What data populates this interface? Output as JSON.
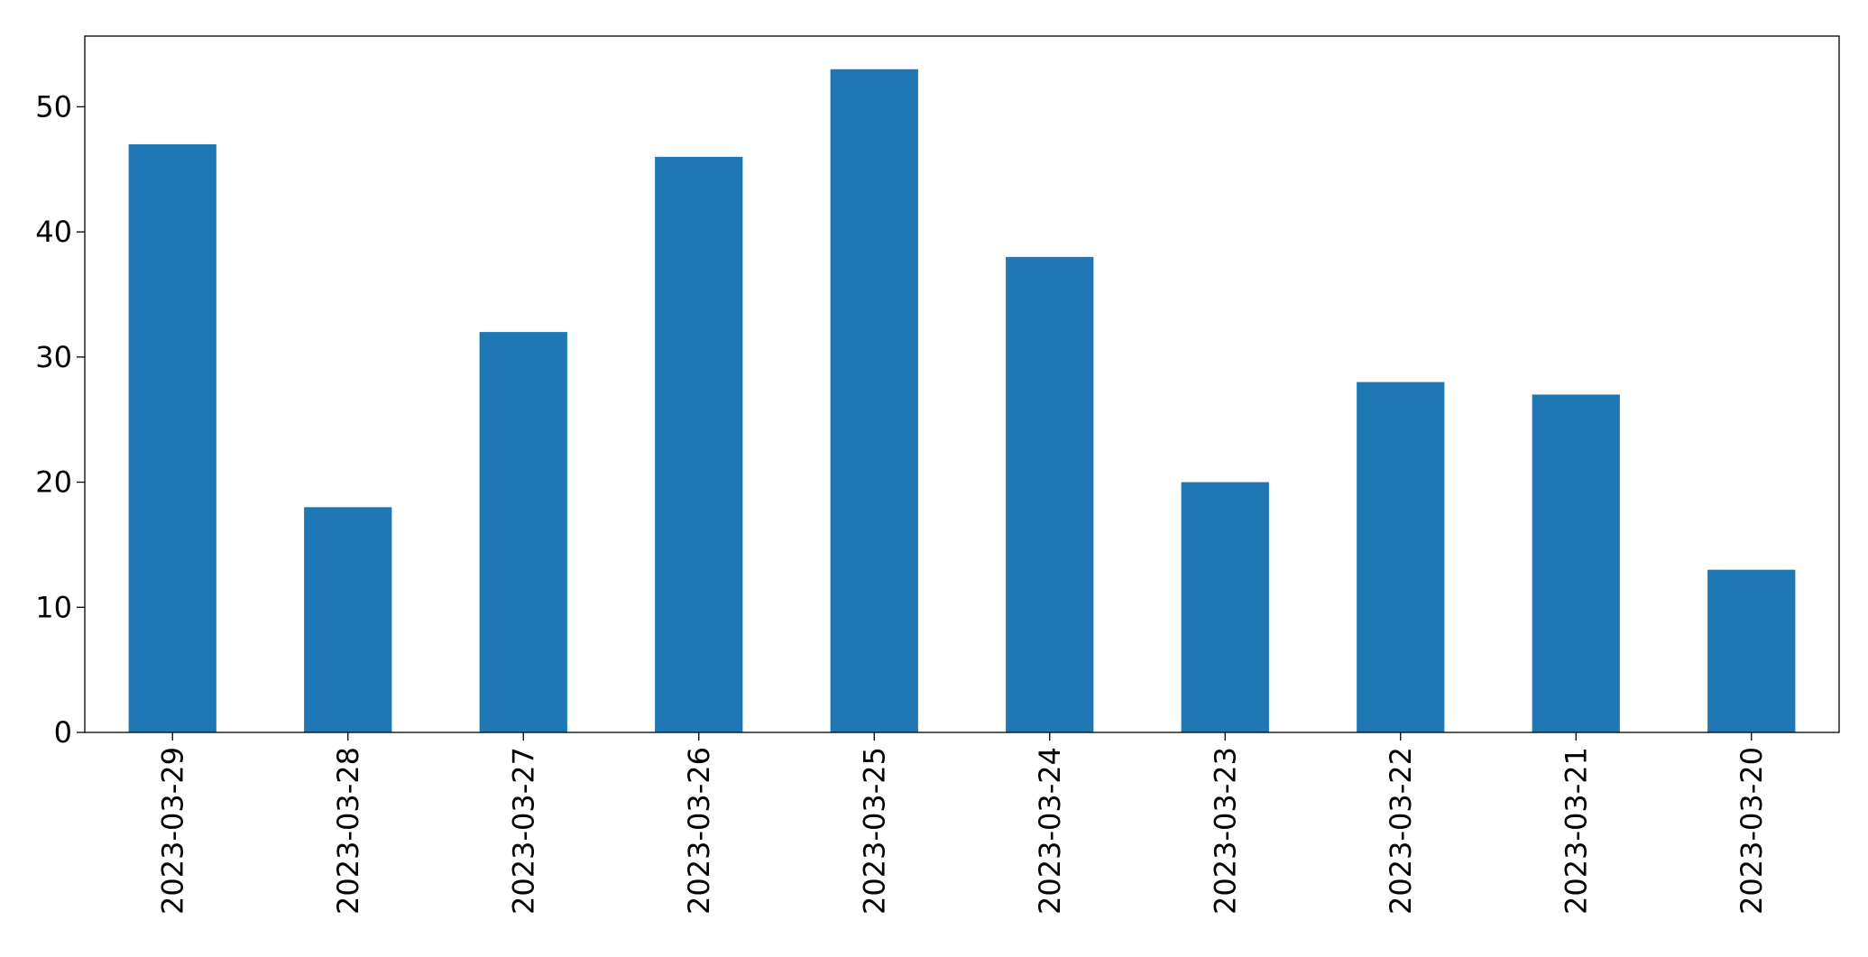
{
  "chart_data": {
    "type": "bar",
    "categories": [
      "2023-03-29",
      "2023-03-28",
      "2023-03-27",
      "2023-03-26",
      "2023-03-25",
      "2023-03-24",
      "2023-03-23",
      "2023-03-22",
      "2023-03-21",
      "2023-03-20"
    ],
    "values": [
      47,
      18,
      32,
      46,
      53,
      38,
      20,
      28,
      27,
      13
    ],
    "color": "#1f77b4",
    "ylim": [
      0,
      55.65
    ],
    "yticks": [
      0,
      10,
      20,
      30,
      40,
      50
    ],
    "grid": false
  }
}
